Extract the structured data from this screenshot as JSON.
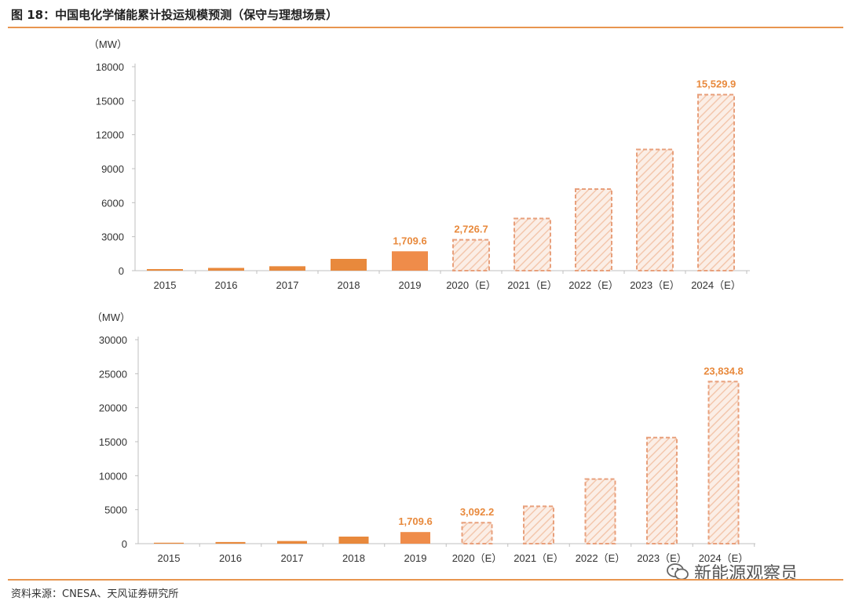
{
  "figure_title": "图 18：中国电化学储能累计投运规模预测（保守与理想场景）",
  "source": "资料来源：CNESA、天风证券研究所",
  "watermark": "新能源观察员",
  "colors": {
    "actual": "#e8893c",
    "actual_2019": "#ef8c4a",
    "forecast_stroke": "#e8a07c",
    "forecast_fill": "#f3c7ad",
    "label": "#e8893c",
    "rule": "#e8954f"
  },
  "chart_data": [
    {
      "type": "bar",
      "unit_label": "（MW）",
      "categories": [
        "2015",
        "2016",
        "2017",
        "2018",
        "2019",
        "2020（E）",
        "2021（E）",
        "2022（E）",
        "2023（E）",
        "2024（E）"
      ],
      "values": [
        140,
        243,
        390,
        1040,
        1709.6,
        2726.7,
        4600,
        7200,
        10700,
        15529.9
      ],
      "forecast": [
        false,
        false,
        false,
        false,
        false,
        true,
        true,
        true,
        true,
        true
      ],
      "data_labels": [
        "",
        "",
        "",
        "",
        "1,709.6",
        "2,726.7",
        "",
        "",
        "",
        "15,529.9"
      ],
      "yticks": [
        "0",
        "3000",
        "6000",
        "9000",
        "12000",
        "15000",
        "18000"
      ],
      "ylim": [
        0,
        18000
      ]
    },
    {
      "type": "bar",
      "unit_label": "（MW）",
      "categories": [
        "2015",
        "2016",
        "2017",
        "2018",
        "2019",
        "2020（E）",
        "2021（E）",
        "2022（E）",
        "2023（E）",
        "2024（E）"
      ],
      "values": [
        140,
        243,
        390,
        1040,
        1709.6,
        3092.2,
        5500,
        9500,
        15600,
        23834.8
      ],
      "forecast": [
        false,
        false,
        false,
        false,
        false,
        true,
        true,
        true,
        true,
        true
      ],
      "data_labels": [
        "",
        "",
        "",
        "",
        "1,709.6",
        "3,092.2",
        "",
        "",
        "",
        "23,834.8"
      ],
      "yticks": [
        "0",
        "5000",
        "10000",
        "15000",
        "20000",
        "25000",
        "30000"
      ],
      "ylim": [
        0,
        30000
      ]
    }
  ]
}
